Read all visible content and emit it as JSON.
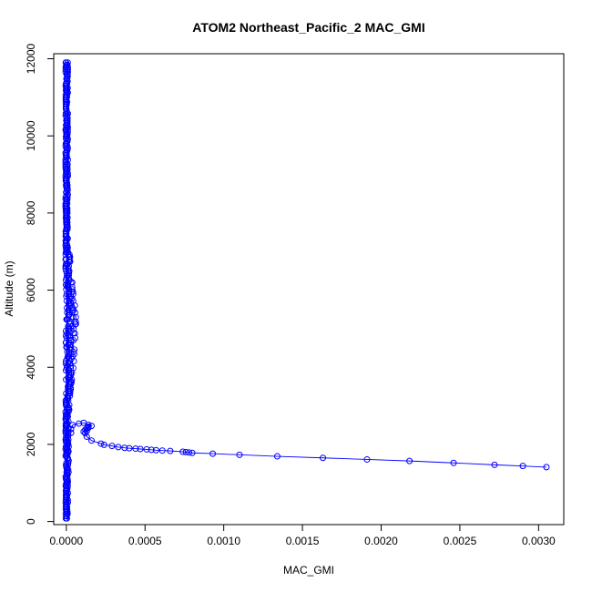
{
  "chart_data": {
    "type": "scatter",
    "title": "ATOM2 Northeast_Pacific_2 MAC_GMI",
    "xlabel": "MAC_GMI",
    "ylabel": "Altitude (m)",
    "xlim": [
      -8e-05,
      0.00316
    ],
    "ylim": [
      -80,
      12130
    ],
    "x_ticks": [
      0,
      0.0005,
      0.001,
      0.0015,
      0.002,
      0.0025,
      0.003
    ],
    "x_tick_labels": [
      "0.0000",
      "0.0005",
      "0.0010",
      "0.0015",
      "0.0020",
      "0.0025",
      "0.0030"
    ],
    "y_ticks": [
      0,
      2000,
      4000,
      6000,
      8000,
      10000,
      12000
    ],
    "y_tick_labels": [
      "0",
      "2000",
      "4000",
      "6000",
      "8000",
      "10000",
      "12000"
    ],
    "grid": false,
    "legend": "none",
    "color": "#0000ff",
    "series": [
      {
        "x": [
          0.00305,
          0.0029,
          0.00272,
          0.00246,
          0.00218,
          0.00191,
          0.00163,
          0.00134,
          0.0011,
          0.00093,
          0.0008,
          0.00078,
          0.00076,
          0.00074,
          0.00066,
          0.00061,
          0.00057,
          0.00054,
          0.00051,
          0.00047,
          0.00044,
          0.0004,
          0.00037,
          0.00033,
          0.00029,
          0.00024,
          0.00022,
          0.00016,
          0.00013,
          0.00012,
          0.00011,
          0.00013,
          0.00012,
          0.00013,
          0.00014,
          0.00014,
          0.00016,
          0.00014,
          0.00011,
          8e-05,
          4e-05,
          3e-05,
          3e-05
        ],
        "y": [
          1410,
          1440,
          1470,
          1520,
          1570,
          1610,
          1650,
          1690,
          1730,
          1760,
          1780,
          1790,
          1800,
          1810,
          1830,
          1840,
          1850,
          1860,
          1870,
          1880,
          1890,
          1900,
          1910,
          1930,
          1960,
          1990,
          2020,
          2100,
          2200,
          2290,
          2330,
          2350,
          2380,
          2410,
          2430,
          2460,
          2480,
          2510,
          2560,
          2540,
          2500,
          2400,
          2300
        ]
      }
    ]
  }
}
